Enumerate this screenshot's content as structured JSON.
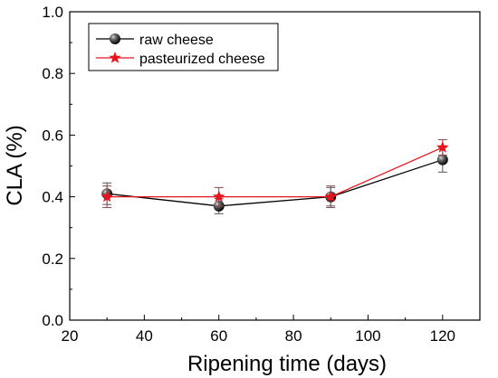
{
  "chart_data": {
    "type": "line",
    "xlabel": "Ripening time (days)",
    "ylabel": "CLA (%)",
    "xlim": [
      20,
      130
    ],
    "ylim": [
      0.0,
      1.0
    ],
    "x_ticks": [
      20,
      40,
      60,
      80,
      100,
      120
    ],
    "x_tick_labels": [
      "20",
      "40",
      "60",
      "80",
      "100",
      "120"
    ],
    "y_ticks": [
      0.0,
      0.2,
      0.4,
      0.6,
      0.8,
      1.0
    ],
    "y_tick_labels": [
      "0.0",
      "0.2",
      "0.4",
      "0.6",
      "0.8",
      "1.0"
    ],
    "grid": false,
    "legend_position": "top-left",
    "series": [
      {
        "name": "raw cheese",
        "color": "#000000",
        "marker": "sphere",
        "x": [
          30,
          60,
          90,
          120
        ],
        "y": [
          0.41,
          0.37,
          0.4,
          0.52
        ],
        "error": [
          0.035,
          0.025,
          0.03,
          0.04
        ]
      },
      {
        "name": "pasteurized cheese",
        "color": "#e8141b",
        "marker": "star",
        "x": [
          30,
          60,
          90,
          120
        ],
        "y": [
          0.4,
          0.4,
          0.4,
          0.56
        ],
        "error": [
          0.035,
          0.03,
          0.035,
          0.025
        ]
      }
    ]
  }
}
